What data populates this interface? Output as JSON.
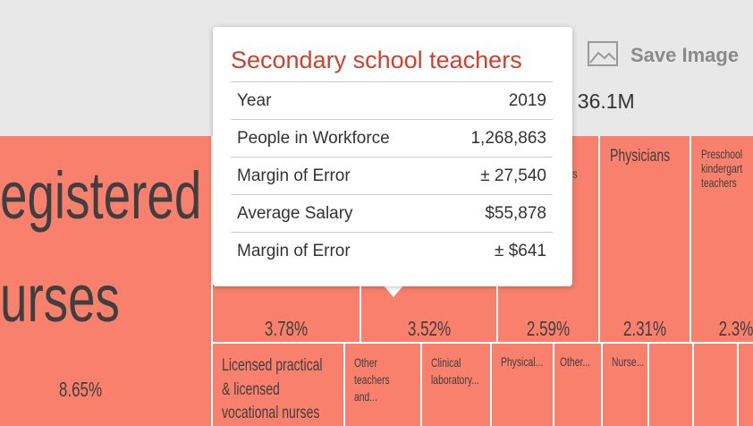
{
  "header": {
    "save_button": "Save Image",
    "total": ": 36.1M"
  },
  "tooltip": {
    "title": "Secondary school teachers",
    "rows": [
      [
        "Year",
        "2019"
      ],
      [
        "People in Workforce",
        "1,268,863"
      ],
      [
        "Margin of Error",
        "± 27,540"
      ],
      [
        "Average Salary",
        "$55,878"
      ],
      [
        "Margin of Error",
        "± $641"
      ]
    ]
  },
  "treemap": {
    "cells": [
      {
        "label": [
          "egistered",
          "urses"
        ],
        "share": "8.65%"
      },
      {
        "share": "3.78%"
      },
      {
        "share": "3.52%"
      },
      {
        "label": [
          "rs"
        ],
        "share": "2.59%"
      },
      {
        "label": [
          "Physicians"
        ],
        "share": "2.31%"
      },
      {
        "label": [
          "Preschool",
          "kindergart",
          "teachers"
        ],
        "share": "2.3%"
      },
      {
        "label": [
          "Licensed practical",
          "& licensed",
          "vocational nurses"
        ]
      },
      {
        "label": [
          "Other",
          "teachers",
          "and..."
        ]
      },
      {
        "label": [
          "Clinical",
          "laboratory..."
        ]
      },
      {
        "label": [
          "Physical..."
        ]
      },
      {
        "label": [
          "Other..."
        ]
      },
      {
        "label": [
          "Nurse..."
        ]
      }
    ]
  }
}
